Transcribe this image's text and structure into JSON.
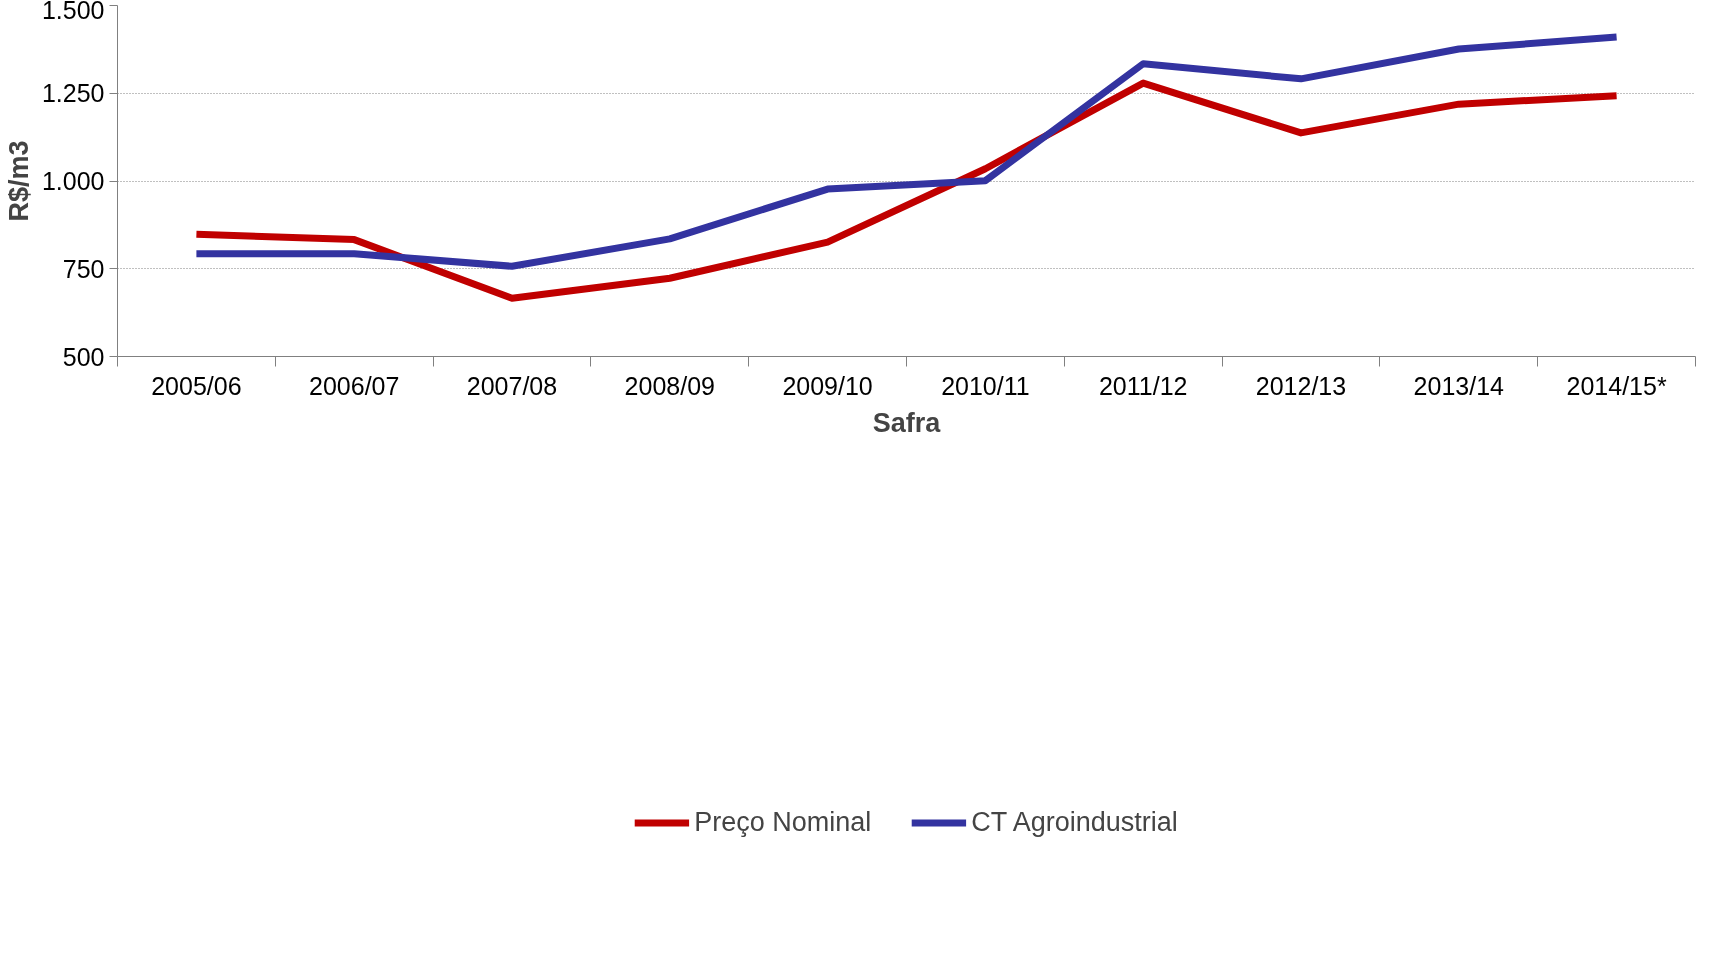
{
  "chart_data": {
    "type": "line",
    "xlabel": "Safra",
    "ylabel": "R$/m3",
    "categories": [
      "2005/06",
      "2006/07",
      "2007/08",
      "2008/09",
      "2009/10",
      "2010/11",
      "2011/12",
      "2012/13",
      "2013/14",
      "2014/15*"
    ],
    "series": [
      {
        "name": "Preço Nominal",
        "color": "#c00000",
        "values": [
          848,
          833,
          666,
          723,
          826,
          1035,
          1279,
          1137,
          1219,
          1243
        ]
      },
      {
        "name": "CT Agroindustrial",
        "color": "#3333a0",
        "values": [
          793,
          793,
          757,
          835,
          977,
          1001,
          1334,
          1291,
          1376,
          1410
        ]
      }
    ],
    "ylim": [
      500,
      1500
    ],
    "yticks": [
      {
        "value": 500,
        "label": "500"
      },
      {
        "value": 750,
        "label": "750"
      },
      {
        "value": 1000,
        "label": "1.000"
      },
      {
        "value": 1250,
        "label": "1.250"
      },
      {
        "value": 1500,
        "label": "1.500"
      }
    ],
    "grid": "y",
    "legend": "bottom",
    "marker": "none",
    "line_style": "solid"
  }
}
